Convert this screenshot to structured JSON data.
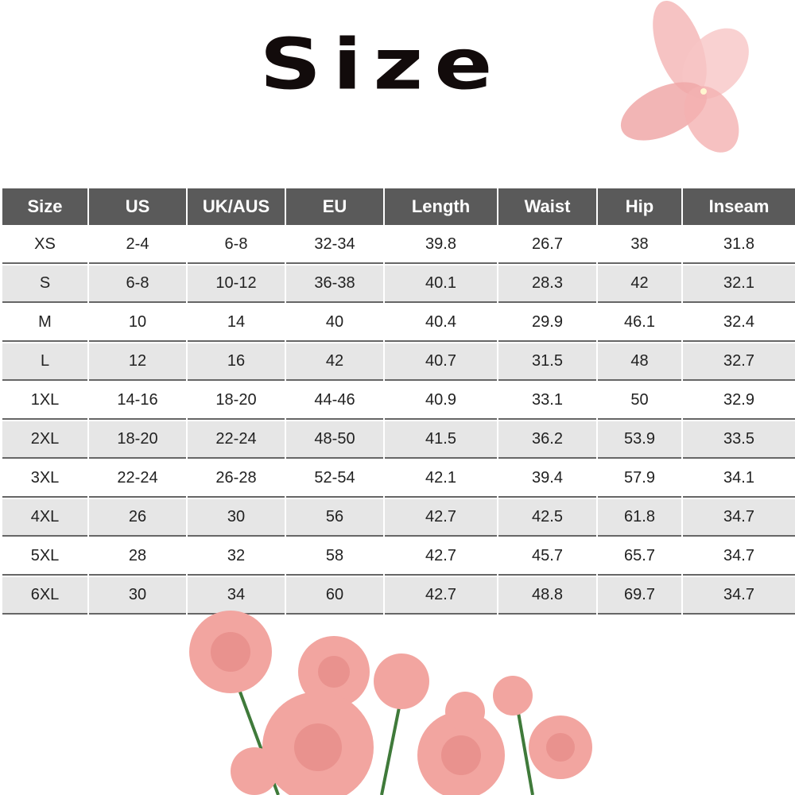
{
  "title": "Size",
  "table": {
    "headers": [
      "Size",
      "US",
      "UK/AUS",
      "EU",
      "Length",
      "Waist",
      "Hip",
      "Inseam"
    ],
    "rows": [
      [
        "XS",
        "2-4",
        "6-8",
        "32-34",
        "39.8",
        "26.7",
        "38",
        "31.8"
      ],
      [
        "S",
        "6-8",
        "10-12",
        "36-38",
        "40.1",
        "28.3",
        "42",
        "32.1"
      ],
      [
        "M",
        "10",
        "14",
        "40",
        "40.4",
        "29.9",
        "46.1",
        "32.4"
      ],
      [
        "L",
        "12",
        "16",
        "42",
        "40.7",
        "31.5",
        "48",
        "32.7"
      ],
      [
        "1XL",
        "14-16",
        "18-20",
        "44-46",
        "40.9",
        "33.1",
        "50",
        "32.9"
      ],
      [
        "2XL",
        "18-20",
        "22-24",
        "48-50",
        "41.5",
        "36.2",
        "53.9",
        "33.5"
      ],
      [
        "3XL",
        "22-24",
        "26-28",
        "52-54",
        "42.1",
        "39.4",
        "57.9",
        "34.1"
      ],
      [
        "4XL",
        "26",
        "30",
        "56",
        "42.7",
        "42.5",
        "61.8",
        "34.7"
      ],
      [
        "5XL",
        "28",
        "32",
        "58",
        "42.7",
        "45.7",
        "65.7",
        "34.7"
      ],
      [
        "6XL",
        "30",
        "34",
        "60",
        "42.7",
        "48.8",
        "69.7",
        "34.7"
      ]
    ]
  },
  "colors": {
    "header_bg": "#5a5a5a",
    "alt_row_bg": "#e6e6e6",
    "rose": "#f4a6a0",
    "butterfly": "#f2b0b0"
  }
}
